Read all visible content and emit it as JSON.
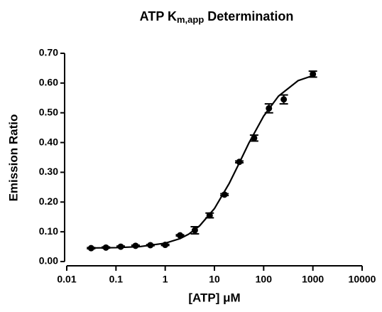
{
  "chart_data": {
    "type": "scatter",
    "title": [
      {
        "text": "ATP K"
      },
      {
        "text": "m,app",
        "sub": true
      },
      {
        "text": " Determination"
      }
    ],
    "xlabel": "[ATP] μM",
    "ylabel": "Emission Ratio",
    "xscale": "log",
    "xlim": [
      0.01,
      10000
    ],
    "xticks": [
      0.01,
      0.1,
      1,
      10,
      100,
      1000,
      10000
    ],
    "ylim": [
      0,
      0.7
    ],
    "yticks": [
      {
        "value": 0,
        "label": "0.00"
      },
      {
        "value": 0.1,
        "label": "0.10"
      },
      {
        "value": 0.2,
        "label": "0.20"
      },
      {
        "value": 0.3,
        "label": "0.30"
      },
      {
        "value": 0.4,
        "label": "0.40"
      },
      {
        "value": 0.5,
        "label": "0.50"
      },
      {
        "value": 0.6,
        "label": "0.60"
      },
      {
        "value": 0.7,
        "label": "0.70"
      }
    ],
    "color": "#000000",
    "x": [
      0.03125,
      0.0625,
      0.125,
      0.25,
      0.5,
      1,
      2,
      4,
      8,
      16,
      32,
      64,
      128,
      256,
      1000
    ],
    "values": [
      0.045,
      0.047,
      0.05,
      0.053,
      0.055,
      0.056,
      0.088,
      0.105,
      0.155,
      0.225,
      0.335,
      0.415,
      0.515,
      0.545,
      0.63
    ],
    "errors": [
      0.002,
      0.002,
      0.002,
      0.002,
      0.002,
      0.002,
      0.002,
      0.012,
      0.008,
      0.003,
      0.003,
      0.01,
      0.015,
      0.015,
      0.01
    ],
    "fit": {
      "x": [
        0.03,
        0.1,
        0.3,
        1,
        2,
        3,
        5,
        10,
        20,
        30,
        50,
        100,
        200,
        500,
        1000
      ],
      "values": [
        0.0455,
        0.0467,
        0.05,
        0.0617,
        0.077,
        0.092,
        0.12,
        0.178,
        0.263,
        0.322,
        0.398,
        0.489,
        0.556,
        0.608,
        0.625
      ]
    }
  }
}
